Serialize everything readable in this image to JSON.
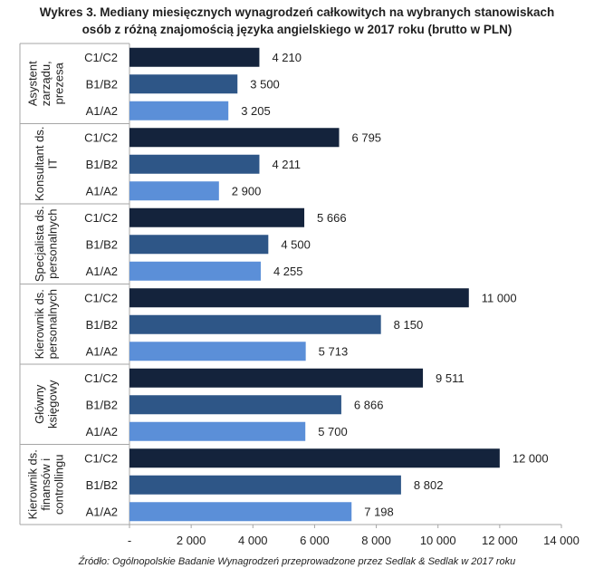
{
  "title_line1": "Wykres 3. Mediany miesięcznych wynagrodzeń całkowitych na wybranych stanowiskach",
  "title_line2": "osób z różną znajomością języka angielskiego w 2017 roku (brutto w PLN)",
  "source": "Źródło: Ogólnopolskie Badanie Wynagrodzeń przeprowadzone przez Sedlak & Sedlak w 2017 roku",
  "colors": {
    "C1/C2": "#14233c",
    "B1/B2": "#2e5687",
    "A1/A2": "#5b8fd8"
  },
  "chart_data": {
    "type": "bar",
    "orientation": "horizontal",
    "xlim": [
      0,
      14000
    ],
    "xticks": [
      0,
      2000,
      4000,
      6000,
      8000,
      10000,
      12000,
      14000
    ],
    "xtick_labels": [
      "-",
      "2 000",
      "4 000",
      "6 000",
      "8 000",
      "10 000",
      "12 000",
      "14 000"
    ],
    "grid": false,
    "groups": [
      {
        "label_lines": [
          "Asystent",
          "zarządu,",
          "prezesa"
        ],
        "bars": [
          {
            "level": "C1/C2",
            "value": 4210,
            "label": "4 210"
          },
          {
            "level": "B1/B2",
            "value": 3500,
            "label": "3 500"
          },
          {
            "level": "A1/A2",
            "value": 3205,
            "label": "3 205"
          }
        ]
      },
      {
        "label_lines": [
          "Konsultant ds.",
          "IT"
        ],
        "bars": [
          {
            "level": "C1/C2",
            "value": 6795,
            "label": "6 795"
          },
          {
            "level": "B1/B2",
            "value": 4211,
            "label": "4 211"
          },
          {
            "level": "A1/A2",
            "value": 2900,
            "label": "2 900"
          }
        ]
      },
      {
        "label_lines": [
          "Specjalista ds.",
          "personalnych"
        ],
        "bars": [
          {
            "level": "C1/C2",
            "value": 5666,
            "label": "5 666"
          },
          {
            "level": "B1/B2",
            "value": 4500,
            "label": "4 500"
          },
          {
            "level": "A1/A2",
            "value": 4255,
            "label": "4 255"
          }
        ]
      },
      {
        "label_lines": [
          "Kierownik ds.",
          "personalnych"
        ],
        "bars": [
          {
            "level": "C1/C2",
            "value": 11000,
            "label": "11 000"
          },
          {
            "level": "B1/B2",
            "value": 8150,
            "label": "8 150"
          },
          {
            "level": "A1/A2",
            "value": 5713,
            "label": "5 713"
          }
        ]
      },
      {
        "label_lines": [
          "Główny",
          "księgowy"
        ],
        "bars": [
          {
            "level": "C1/C2",
            "value": 9511,
            "label": "9 511"
          },
          {
            "level": "B1/B2",
            "value": 6866,
            "label": "6 866"
          },
          {
            "level": "A1/A2",
            "value": 5700,
            "label": "5 700"
          }
        ]
      },
      {
        "label_lines": [
          "Kierownik ds.",
          "finansów i",
          "controllingu"
        ],
        "bars": [
          {
            "level": "C1/C2",
            "value": 12000,
            "label": "12 000"
          },
          {
            "level": "B1/B2",
            "value": 8802,
            "label": "8 802"
          },
          {
            "level": "A1/A2",
            "value": 7198,
            "label": "7 198"
          }
        ]
      }
    ]
  }
}
